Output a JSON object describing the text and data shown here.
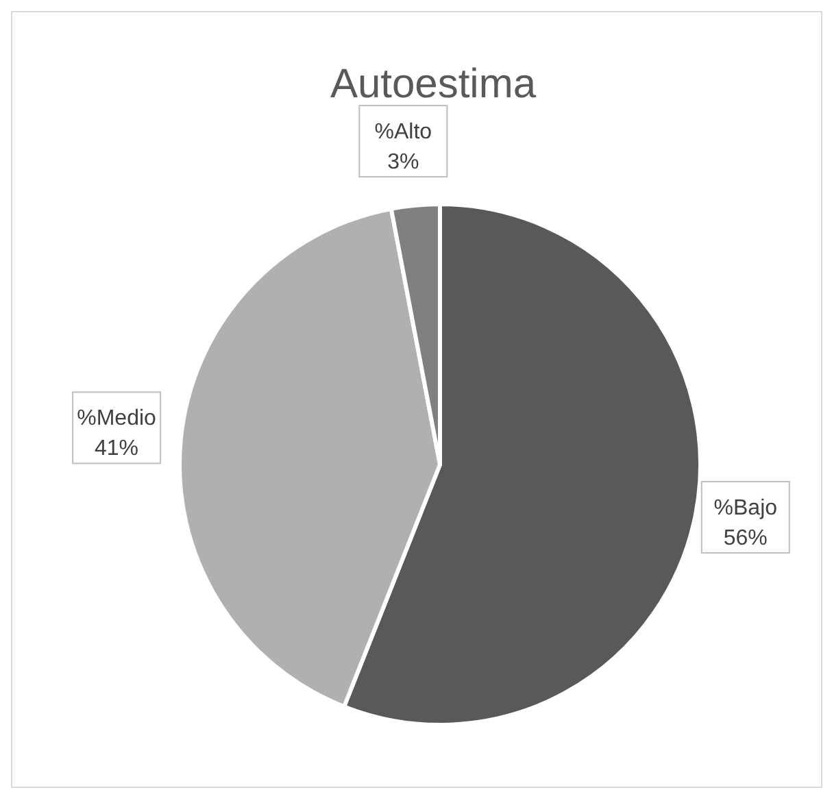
{
  "chart_data": {
    "type": "pie",
    "title": "Autoestima",
    "categories": [
      "%Bajo",
      "%Medio",
      "%Alto"
    ],
    "values": [
      56,
      41,
      3
    ],
    "value_labels": [
      "56%",
      "41%",
      "3%"
    ],
    "colors": [
      "#595959",
      "#b0b0b0",
      "#808080"
    ],
    "legend": false
  }
}
